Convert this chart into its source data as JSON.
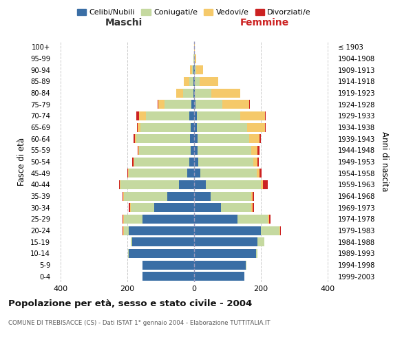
{
  "age_groups": [
    "0-4",
    "5-9",
    "10-14",
    "15-19",
    "20-24",
    "25-29",
    "30-34",
    "35-39",
    "40-44",
    "45-49",
    "50-54",
    "55-59",
    "60-64",
    "65-69",
    "70-74",
    "75-79",
    "80-84",
    "85-89",
    "90-94",
    "95-99",
    "100+"
  ],
  "birth_years": [
    "1999-2003",
    "1994-1998",
    "1989-1993",
    "1984-1988",
    "1979-1983",
    "1974-1978",
    "1969-1973",
    "1964-1968",
    "1959-1963",
    "1954-1958",
    "1949-1953",
    "1944-1948",
    "1939-1943",
    "1934-1938",
    "1929-1933",
    "1924-1928",
    "1919-1923",
    "1914-1918",
    "1909-1913",
    "1904-1908",
    "≤ 1903"
  ],
  "male": {
    "celibi": [
      155,
      155,
      195,
      185,
      195,
      155,
      120,
      80,
      45,
      20,
      15,
      10,
      12,
      10,
      15,
      8,
      3,
      3,
      2,
      1,
      0
    ],
    "coniugati": [
      0,
      0,
      2,
      5,
      15,
      55,
      70,
      130,
      175,
      175,
      165,
      155,
      160,
      150,
      130,
      80,
      30,
      12,
      5,
      1,
      0
    ],
    "vedovi": [
      0,
      0,
      0,
      0,
      2,
      2,
      2,
      2,
      2,
      2,
      2,
      2,
      5,
      8,
      20,
      20,
      20,
      15,
      5,
      1,
      0
    ],
    "divorziati": [
      0,
      0,
      0,
      0,
      2,
      2,
      3,
      3,
      3,
      2,
      3,
      2,
      5,
      2,
      8,
      2,
      0,
      0,
      0,
      0,
      0
    ]
  },
  "female": {
    "nubili": [
      150,
      155,
      185,
      190,
      200,
      130,
      80,
      50,
      35,
      18,
      12,
      10,
      10,
      8,
      8,
      5,
      2,
      2,
      2,
      1,
      0
    ],
    "coniugate": [
      0,
      2,
      5,
      20,
      55,
      90,
      90,
      120,
      165,
      170,
      165,
      160,
      155,
      150,
      130,
      80,
      50,
      15,
      5,
      2,
      1
    ],
    "vedove": [
      0,
      0,
      0,
      0,
      2,
      5,
      5,
      5,
      5,
      8,
      12,
      20,
      30,
      55,
      75,
      80,
      85,
      55,
      20,
      3,
      1
    ],
    "divorziate": [
      0,
      0,
      0,
      0,
      2,
      3,
      5,
      5,
      15,
      5,
      5,
      5,
      5,
      2,
      2,
      2,
      0,
      0,
      0,
      0,
      0
    ]
  },
  "colors": {
    "celibi": "#3a6ea5",
    "coniugati": "#c5d9a0",
    "vedovi": "#f5c96a",
    "divorziati": "#cc2222"
  },
  "title": "Popolazione per età, sesso e stato civile - 2004",
  "subtitle": "COMUNE DI TREBISACCE (CS) - Dati ISTAT 1° gennaio 2004 - Elaborazione TUTTITALIA.IT",
  "xlabel_left": "Maschi",
  "xlabel_right": "Femmine",
  "ylabel_left": "Fasce di età",
  "ylabel_right": "Anni di nascita",
  "xlim": 420,
  "legend_labels": [
    "Celibi/Nubili",
    "Coniugati/e",
    "Vedovi/e",
    "Divorziati/e"
  ],
  "background_color": "#ffffff",
  "grid_color": "#cccccc"
}
